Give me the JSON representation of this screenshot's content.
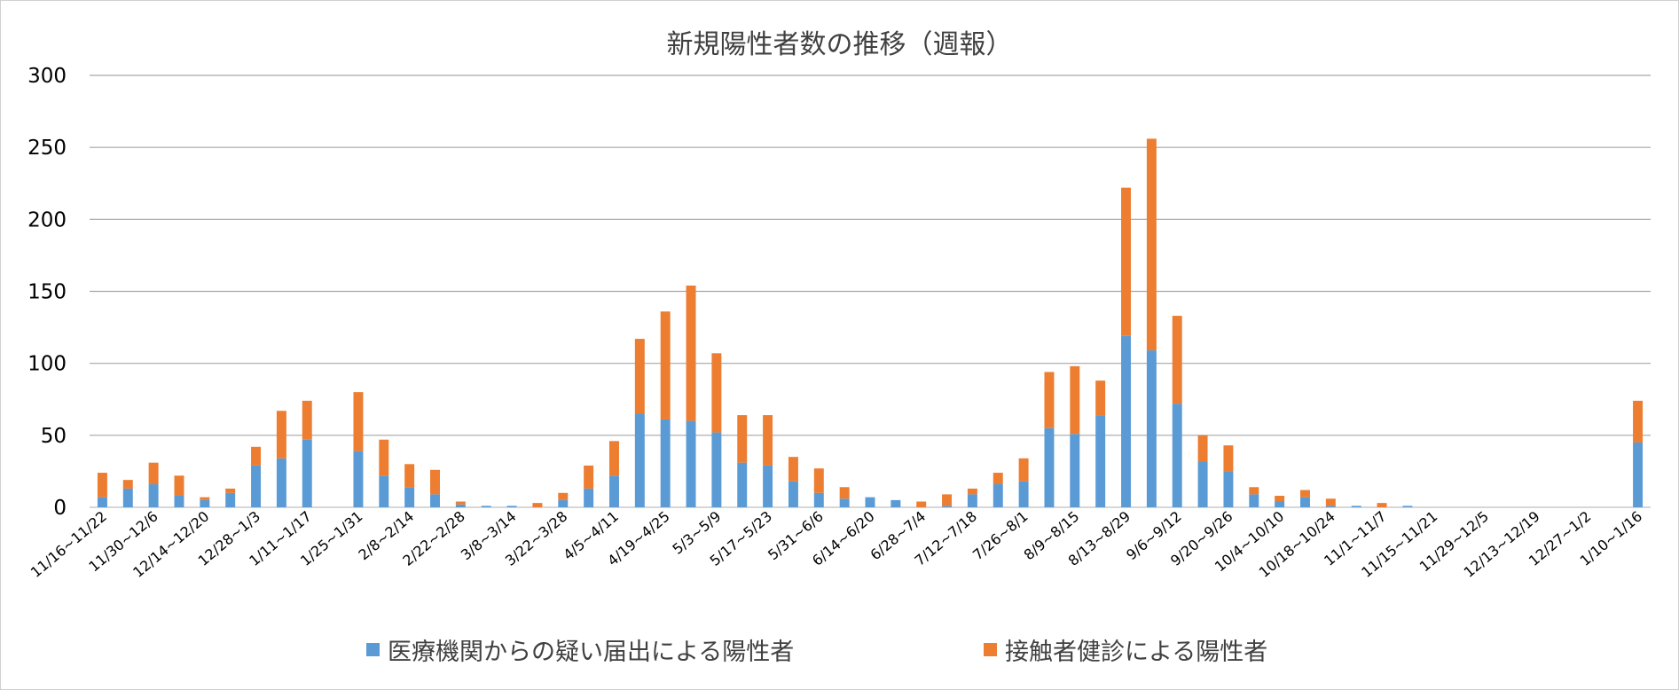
{
  "chart_data": {
    "type": "bar",
    "stacked": true,
    "title": "新規陽性者数の推移（週報）",
    "ylim": [
      0,
      300
    ],
    "yticks": [
      0,
      50,
      100,
      150,
      200,
      250,
      300
    ],
    "grid": true,
    "legend_position": "bottom",
    "categories": [
      "11/16~11/22",
      "11/23~11/29",
      "11/30~12/6",
      "12/7~12/13",
      "12/14~12/20",
      "12/21~12/27",
      "12/28~1/3",
      "1/4~1/10",
      "1/11~1/17",
      "1/18~1/24",
      "1/25~1/31",
      "2/1~2/7",
      "2/8~2/14",
      "2/15~2/21",
      "2/22~2/28",
      "3/1~3/7",
      "3/8~3/14",
      "3/15~3/21",
      "3/22~3/28",
      "3/29~4/4",
      "4/5~4/11",
      "4/12~4/18",
      "4/19~4/25",
      "4/26~5/2",
      "5/3~5/9",
      "5/10~5/16",
      "5/17~5/23",
      "5/24~5/30",
      "5/31~6/6",
      "6/7~6/13",
      "6/14~6/20",
      "6/21~6/27",
      "6/28~7/4",
      "7/5~7/11",
      "7/12~7/18",
      "7/19~7/25",
      "7/26~8/1",
      "8/2~8/8",
      "8/9~8/15",
      "8/16~8/22",
      "8/13~8/29",
      "8/30~9/5",
      "9/6~9/12",
      "9/13~9/19",
      "9/20~9/26",
      "9/27~10/3",
      "10/4~10/10",
      "10/11~10/17",
      "10/18~10/24",
      "10/25~10/31",
      "11/1~11/7",
      "11/8~11/14",
      "11/15~11/21",
      "11/22~11/28",
      "11/29~12/5",
      "12/6~12/12",
      "12/13~12/19",
      "12/20~12/26",
      "12/27~1/2",
      "1/3~1/9",
      "1/10~1/16"
    ],
    "tick_labels": [
      "11/16~11/22",
      "11/30~12/6",
      "12/14~12/20",
      "12/28~1/3",
      "1/11~1/17",
      "1/25~1/31",
      "2/8~2/14",
      "2/22~2/28",
      "3/8~3/14",
      "3/22~3/28",
      "4/5~4/11",
      "4/19~4/25",
      "5/3~5/9",
      "5/17~5/23",
      "5/31~6/6",
      "6/14~6/20",
      "6/28~7/4",
      "7/12~7/18",
      "7/26~8/1",
      "8/9~8/15",
      "8/13~8/29",
      "9/6~9/12",
      "9/20~9/26",
      "10/4~10/10",
      "10/18~10/24",
      "11/1~11/7",
      "11/15~11/21",
      "11/29~12/5",
      "12/13~12/19",
      "12/27~1/2",
      "1/10~1/16"
    ],
    "series": [
      {
        "name": "医療機関からの疑い届出による陽性者",
        "color": "#5b9bd5",
        "values": [
          7,
          13,
          16,
          8,
          5,
          10,
          29,
          34,
          47,
          null,
          39,
          22,
          14,
          9,
          2,
          1,
          1,
          0,
          5,
          13,
          22,
          65,
          61,
          60,
          52,
          31,
          29,
          18,
          10,
          6,
          7,
          5,
          0,
          1,
          9,
          16,
          18,
          55,
          51,
          64,
          119,
          109,
          72,
          32,
          25,
          9,
          4,
          7,
          1,
          1,
          0,
          1,
          0,
          0,
          0,
          0,
          0,
          0,
          0,
          0,
          45
        ]
      },
      {
        "name": "接触者健診による陽性者",
        "color": "#ed7d31",
        "values": [
          17,
          6,
          15,
          14,
          2,
          3,
          13,
          33,
          27,
          null,
          41,
          25,
          16,
          17,
          2,
          0,
          0,
          3,
          5,
          16,
          24,
          52,
          75,
          94,
          55,
          33,
          35,
          17,
          17,
          8,
          0,
          0,
          4,
          8,
          4,
          8,
          16,
          39,
          47,
          24,
          103,
          147,
          61,
          18,
          18,
          5,
          4,
          5,
          5,
          0,
          3,
          0,
          0,
          0,
          0,
          0,
          0,
          0,
          0,
          0,
          29
        ]
      }
    ]
  }
}
